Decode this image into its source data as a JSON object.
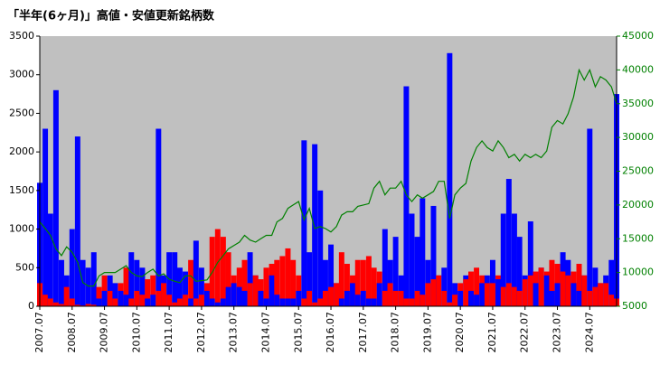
{
  "chart_data": {
    "type": "bar-line",
    "title": "「半年(6ヶ月)」高値・安値更新銘柄数",
    "x": [
      2007.5,
      2007.67,
      2007.83,
      2008.0,
      2008.17,
      2008.33,
      2008.5,
      2008.67,
      2008.83,
      2009.0,
      2009.17,
      2009.33,
      2009.5,
      2009.67,
      2009.83,
      2010.0,
      2010.17,
      2010.33,
      2010.5,
      2010.67,
      2010.83,
      2011.0,
      2011.17,
      2011.33,
      2011.5,
      2011.67,
      2011.83,
      2012.0,
      2012.17,
      2012.33,
      2012.5,
      2012.67,
      2012.83,
      2013.0,
      2013.17,
      2013.33,
      2013.5,
      2013.67,
      2013.83,
      2014.0,
      2014.17,
      2014.33,
      2014.5,
      2014.67,
      2014.83,
      2015.0,
      2015.17,
      2015.33,
      2015.5,
      2015.67,
      2015.83,
      2016.0,
      2016.17,
      2016.33,
      2016.5,
      2016.67,
      2016.83,
      2017.0,
      2017.17,
      2017.33,
      2017.5,
      2017.67,
      2017.83,
      2018.0,
      2018.17,
      2018.33,
      2018.5,
      2018.67,
      2018.83,
      2019.0,
      2019.17,
      2019.33,
      2019.5,
      2019.67,
      2019.83,
      2020.0,
      2020.17,
      2020.33,
      2020.5,
      2020.67,
      2020.83,
      2021.0,
      2021.17,
      2021.33,
      2021.5,
      2021.67,
      2021.83,
      2022.0,
      2022.17,
      2022.33,
      2022.5,
      2022.67,
      2022.83,
      2023.0,
      2023.17,
      2023.33,
      2023.5,
      2023.67,
      2023.83,
      2024.0,
      2024.17,
      2024.33,
      2024.5,
      2024.67,
      2024.83,
      2025.0,
      2025.17,
      2025.33
    ],
    "series": [
      {
        "color": "#0000ff",
        "values": [
          1600,
          2300,
          1200,
          2800,
          600,
          400,
          1000,
          2200,
          600,
          500,
          700,
          100,
          200,
          400,
          300,
          200,
          150,
          700,
          600,
          500,
          100,
          150,
          2300,
          400,
          700,
          700,
          500,
          450,
          100,
          850,
          500,
          200,
          100,
          50,
          100,
          250,
          300,
          250,
          200,
          700,
          400,
          200,
          100,
          400,
          150,
          100,
          100,
          100,
          200,
          2150,
          700,
          2100,
          1500,
          600,
          800,
          300,
          100,
          200,
          300,
          150,
          200,
          100,
          100,
          300,
          1000,
          600,
          900,
          400,
          2850,
          1200,
          900,
          1400,
          600,
          1300,
          400,
          500,
          3280,
          300,
          200,
          400,
          200,
          150,
          300,
          400,
          600,
          350,
          1200,
          1650,
          1200,
          900,
          400,
          1100,
          300,
          500,
          400,
          200,
          300,
          700,
          600,
          300,
          200,
          400,
          2300,
          500,
          300,
          400,
          600,
          2750
        ]
      },
      {
        "color": "#ff0000",
        "values": [
          300,
          150,
          100,
          50,
          30,
          250,
          100,
          20,
          10,
          30,
          20,
          250,
          400,
          200,
          100,
          300,
          500,
          100,
          200,
          150,
          350,
          400,
          200,
          300,
          150,
          50,
          100,
          150,
          600,
          100,
          150,
          300,
          900,
          1000,
          900,
          700,
          400,
          500,
          600,
          300,
          400,
          350,
          500,
          550,
          600,
          650,
          750,
          600,
          400,
          100,
          200,
          50,
          100,
          200,
          250,
          300,
          700,
          550,
          400,
          600,
          600,
          650,
          500,
          450,
          200,
          300,
          200,
          200,
          100,
          100,
          200,
          150,
          300,
          350,
          400,
          200,
          50,
          150,
          300,
          350,
          450,
          500,
          400,
          300,
          300,
          400,
          250,
          300,
          250,
          200,
          350,
          400,
          450,
          500,
          450,
          600,
          550,
          450,
          400,
          450,
          550,
          400,
          200,
          250,
          300,
          300,
          150,
          100
        ]
      },
      {
        "color": "#008000",
        "axis": "y2",
        "values": [
          17500,
          16500,
          15500,
          13500,
          12500,
          13800,
          13000,
          11500,
          8500,
          8000,
          8000,
          9500,
          10000,
          10000,
          10000,
          10500,
          11000,
          10000,
          9500,
          9400,
          10000,
          10500,
          9500,
          9800,
          9000,
          8700,
          8500,
          9500,
          9500,
          8700,
          8800,
          8900,
          10000,
          11500,
          12500,
          13500,
          14000,
          14500,
          15500,
          14800,
          14500,
          15000,
          15500,
          15500,
          17500,
          18000,
          19500,
          20000,
          20500,
          17800,
          19500,
          16500,
          16800,
          16500,
          16000,
          16800,
          18500,
          19000,
          19000,
          19800,
          20000,
          20200,
          22500,
          23500,
          21500,
          22500,
          22500,
          23500,
          21500,
          20500,
          21500,
          21000,
          21500,
          22000,
          23500,
          23500,
          18000,
          21500,
          22500,
          23200,
          26500,
          28500,
          29500,
          28500,
          28000,
          29500,
          28500,
          27000,
          27500,
          26500,
          27500,
          27000,
          27500,
          27000,
          28000,
          31500,
          32500,
          32000,
          33500,
          36000,
          40000,
          38500,
          40000,
          37500,
          39000,
          38500,
          37500,
          35000
        ]
      }
    ],
    "xlim": [
      2007.5,
      2025.33
    ],
    "xticks": [
      {
        "value": 2007.5,
        "label": "2007.07"
      },
      {
        "value": 2008.5,
        "label": "2008.07"
      },
      {
        "value": 2009.5,
        "label": "2009.07"
      },
      {
        "value": 2010.5,
        "label": "2010.07"
      },
      {
        "value": 2011.5,
        "label": "2011.07"
      },
      {
        "value": 2012.5,
        "label": "2012.07"
      },
      {
        "value": 2013.5,
        "label": "2013.07"
      },
      {
        "value": 2014.5,
        "label": "2014.07"
      },
      {
        "value": 2015.5,
        "label": "2015.07"
      },
      {
        "value": 2016.5,
        "label": "2016.07"
      },
      {
        "value": 2017.5,
        "label": "2017.07"
      },
      {
        "value": 2018.5,
        "label": "2018.07"
      },
      {
        "value": 2019.5,
        "label": "2019.07"
      },
      {
        "value": 2020.5,
        "label": "2020.07"
      },
      {
        "value": 2021.5,
        "label": "2021.07"
      },
      {
        "value": 2022.5,
        "label": "2022.07"
      },
      {
        "value": 2023.5,
        "label": "2023.07"
      },
      {
        "value": 2024.5,
        "label": "2024.07"
      }
    ],
    "ylim": [
      0,
      3500
    ],
    "yticks": [
      0,
      500,
      1000,
      1500,
      2000,
      2500,
      3000,
      3500
    ],
    "y2lim": [
      5000,
      45000
    ],
    "y2ticks": [
      5000,
      10000,
      15000,
      20000,
      25000,
      30000,
      35000,
      40000,
      45000
    ],
    "y2_color": "#008000",
    "background": "#c0c0c0"
  }
}
